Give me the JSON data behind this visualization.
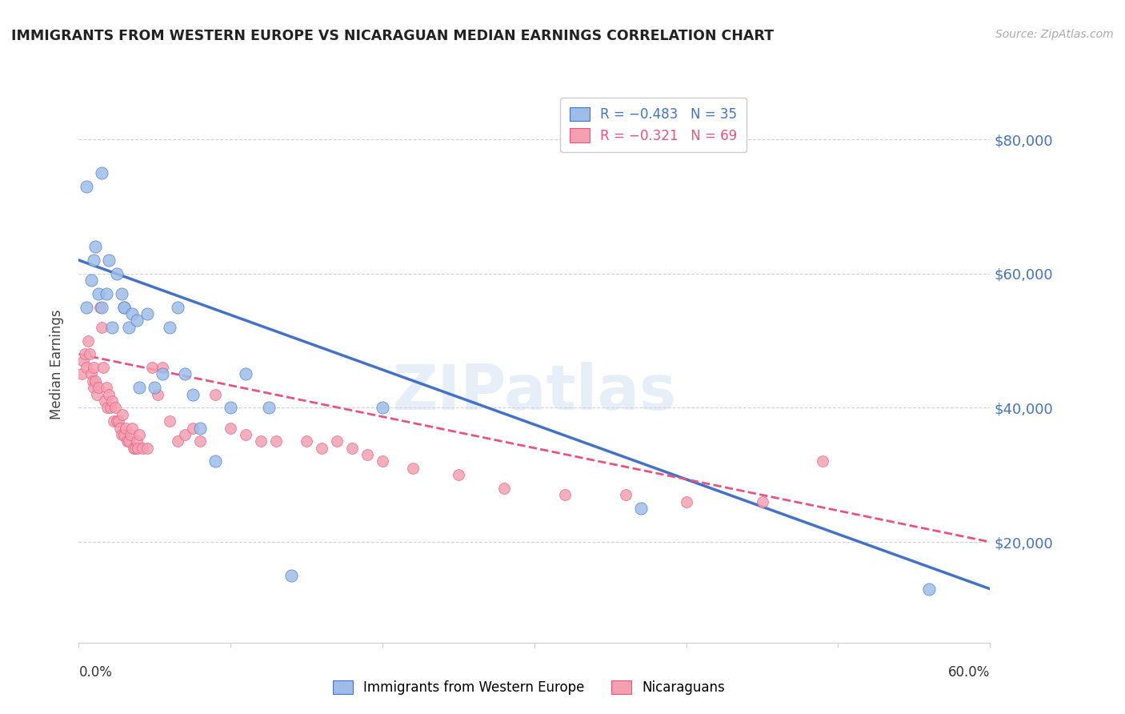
{
  "title": "IMMIGRANTS FROM WESTERN EUROPE VS NICARAGUAN MEDIAN EARNINGS CORRELATION CHART",
  "source": "Source: ZipAtlas.com",
  "ylabel": "Median Earnings",
  "y_ticks": [
    20000,
    40000,
    60000,
    80000
  ],
  "y_tick_labels": [
    "$20,000",
    "$40,000",
    "$60,000",
    "$80,000"
  ],
  "x_range": [
    0.0,
    0.6
  ],
  "y_range": [
    5000,
    88000
  ],
  "watermark": "ZIPatlas",
  "legend_entry_blue": "R = −0.483   N = 35",
  "legend_entry_pink": "R = −0.321   N = 69",
  "blue_scatter_x": [
    0.005,
    0.005,
    0.008,
    0.01,
    0.011,
    0.013,
    0.015,
    0.015,
    0.018,
    0.02,
    0.022,
    0.025,
    0.028,
    0.03,
    0.03,
    0.033,
    0.035,
    0.038,
    0.04,
    0.045,
    0.05,
    0.055,
    0.06,
    0.065,
    0.07,
    0.075,
    0.08,
    0.09,
    0.1,
    0.11,
    0.125,
    0.14,
    0.2,
    0.37,
    0.56
  ],
  "blue_scatter_y": [
    55000,
    73000,
    59000,
    62000,
    64000,
    57000,
    55000,
    75000,
    57000,
    62000,
    52000,
    60000,
    57000,
    55000,
    55000,
    52000,
    54000,
    53000,
    43000,
    54000,
    43000,
    45000,
    52000,
    55000,
    45000,
    42000,
    37000,
    32000,
    40000,
    45000,
    40000,
    15000,
    40000,
    25000,
    13000
  ],
  "pink_scatter_x": [
    0.002,
    0.003,
    0.004,
    0.005,
    0.006,
    0.007,
    0.008,
    0.009,
    0.01,
    0.01,
    0.011,
    0.012,
    0.013,
    0.014,
    0.015,
    0.016,
    0.017,
    0.018,
    0.019,
    0.02,
    0.021,
    0.022,
    0.023,
    0.024,
    0.025,
    0.026,
    0.027,
    0.028,
    0.029,
    0.03,
    0.031,
    0.032,
    0.033,
    0.034,
    0.035,
    0.036,
    0.037,
    0.038,
    0.039,
    0.04,
    0.042,
    0.045,
    0.048,
    0.052,
    0.055,
    0.06,
    0.065,
    0.07,
    0.075,
    0.08,
    0.09,
    0.1,
    0.11,
    0.12,
    0.13,
    0.15,
    0.16,
    0.17,
    0.18,
    0.19,
    0.2,
    0.22,
    0.25,
    0.28,
    0.32,
    0.36,
    0.4,
    0.45,
    0.49
  ],
  "pink_scatter_y": [
    45000,
    47000,
    48000,
    46000,
    50000,
    48000,
    45000,
    44000,
    46000,
    43000,
    44000,
    42000,
    43000,
    55000,
    52000,
    46000,
    41000,
    43000,
    40000,
    42000,
    40000,
    41000,
    38000,
    40000,
    38000,
    38000,
    37000,
    36000,
    39000,
    36000,
    37000,
    35000,
    35000,
    36000,
    37000,
    34000,
    34000,
    35000,
    34000,
    36000,
    34000,
    34000,
    46000,
    42000,
    46000,
    38000,
    35000,
    36000,
    37000,
    35000,
    42000,
    37000,
    36000,
    35000,
    35000,
    35000,
    34000,
    35000,
    34000,
    33000,
    32000,
    31000,
    30000,
    28000,
    27000,
    27000,
    26000,
    26000,
    32000
  ],
  "blue_line_x": [
    0.0,
    0.6
  ],
  "blue_line_y": [
    62000,
    13000
  ],
  "pink_line_x": [
    0.0,
    0.6
  ],
  "pink_line_y": [
    48000,
    20000
  ],
  "blue_color": "#4472c4",
  "pink_color": "#e75480",
  "blue_scatter_color": "#9dbde8",
  "pink_scatter_color": "#f4a0b0",
  "grid_color": "#d0d0d0",
  "background_color": "#ffffff",
  "title_color": "#222222",
  "tick_color": "#4472c4"
}
